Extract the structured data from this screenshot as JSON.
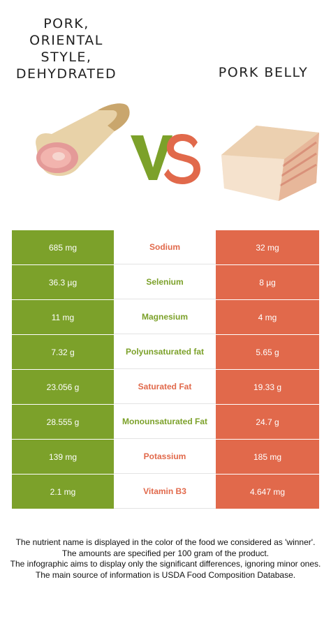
{
  "left_food": {
    "name": "PORK,\nORIENTAL\nSTYLE,\nDEHYDRATED",
    "color": "#7ca12a"
  },
  "right_food": {
    "name": "PORK BELLY",
    "color": "#e1694b"
  },
  "vs_label": "VS",
  "rows": [
    {
      "left": "685 mg",
      "nutrient": "Sodium",
      "right": "32 mg",
      "winner": "right"
    },
    {
      "left": "36.3 µg",
      "nutrient": "Selenium",
      "right": "8 µg",
      "winner": "left"
    },
    {
      "left": "11 mg",
      "nutrient": "Magnesium",
      "right": "4 mg",
      "winner": "left"
    },
    {
      "left": "7.32 g",
      "nutrient": "Polyunsaturated fat",
      "right": "5.65 g",
      "winner": "left"
    },
    {
      "left": "23.056 g",
      "nutrient": "Saturated Fat",
      "right": "19.33 g",
      "winner": "right"
    },
    {
      "left": "28.555 g",
      "nutrient": "Monounsaturated Fat",
      "right": "24.7 g",
      "winner": "left"
    },
    {
      "left": "139 mg",
      "nutrient": "Potassium",
      "right": "185 mg",
      "winner": "right"
    },
    {
      "left": "2.1 mg",
      "nutrient": "Vitamin B3",
      "right": "4.647 mg",
      "winner": "right"
    }
  ],
  "footer": [
    "The nutrient name is displayed in the color of the food we considered as 'winner'.",
    "The amounts are specified per 100 gram of the product.",
    "The infographic aims to display only the significant differences, ignoring minor ones.",
    "The main source of information is USDA Food Composition Database."
  ]
}
